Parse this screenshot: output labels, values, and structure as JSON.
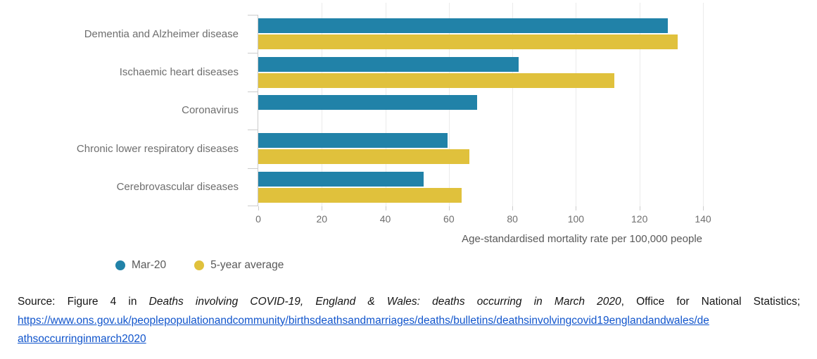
{
  "chart_data": {
    "type": "bar",
    "orientation": "horizontal",
    "title": "",
    "categories": [
      "Dementia and Alzheimer disease",
      "Ischaemic heart diseases",
      "Coronavirus",
      "Chronic lower respiratory diseases",
      "Cerebrovascular diseases"
    ],
    "series": [
      {
        "name": "Mar-20",
        "color": "#2182a8",
        "values": [
          129,
          82,
          69,
          59.5,
          52
        ]
      },
      {
        "name": "5-year average",
        "color": "#e0c13c",
        "values": [
          132,
          112,
          null,
          66.5,
          64
        ]
      }
    ],
    "xlabel": "Age-standardised mortality rate per 100,000 people",
    "ylabel": "",
    "xlim": [
      0,
      140
    ],
    "xticks": [
      0,
      20,
      40,
      60,
      80,
      100,
      120,
      140
    ],
    "grid": true,
    "legend_position": "bottom-left"
  },
  "colors": {
    "mar20": "#2182a8",
    "five_year_average": "#e0c13c",
    "axis": "#cccccc",
    "gridline": "#ebebeb",
    "label_text": "#6e6e6e",
    "link": "#1155cc"
  },
  "source": {
    "prefix": "Source: Figure 4 in ",
    "title_italic": "Deaths involving COVID-19, England & Wales: deaths occurring in March 2020",
    "suffix": ", Office for National Statistics;",
    "link_line1": "https://www.ons.gov.uk/peoplepopulationandcommunity/birthsdeathsandmarriages/deaths/bulletins/deathsinvolvingcovid19englandandwales/de",
    "link_line2": "athsoccurringinmarch2020",
    "url": "https://www.ons.gov.uk/peoplepopulationandcommunity/birthsdeathsandmarriages/deaths/bulletins/deathsinvolvingcovid19englandandwales/deathsoccurringinmarch2020"
  }
}
